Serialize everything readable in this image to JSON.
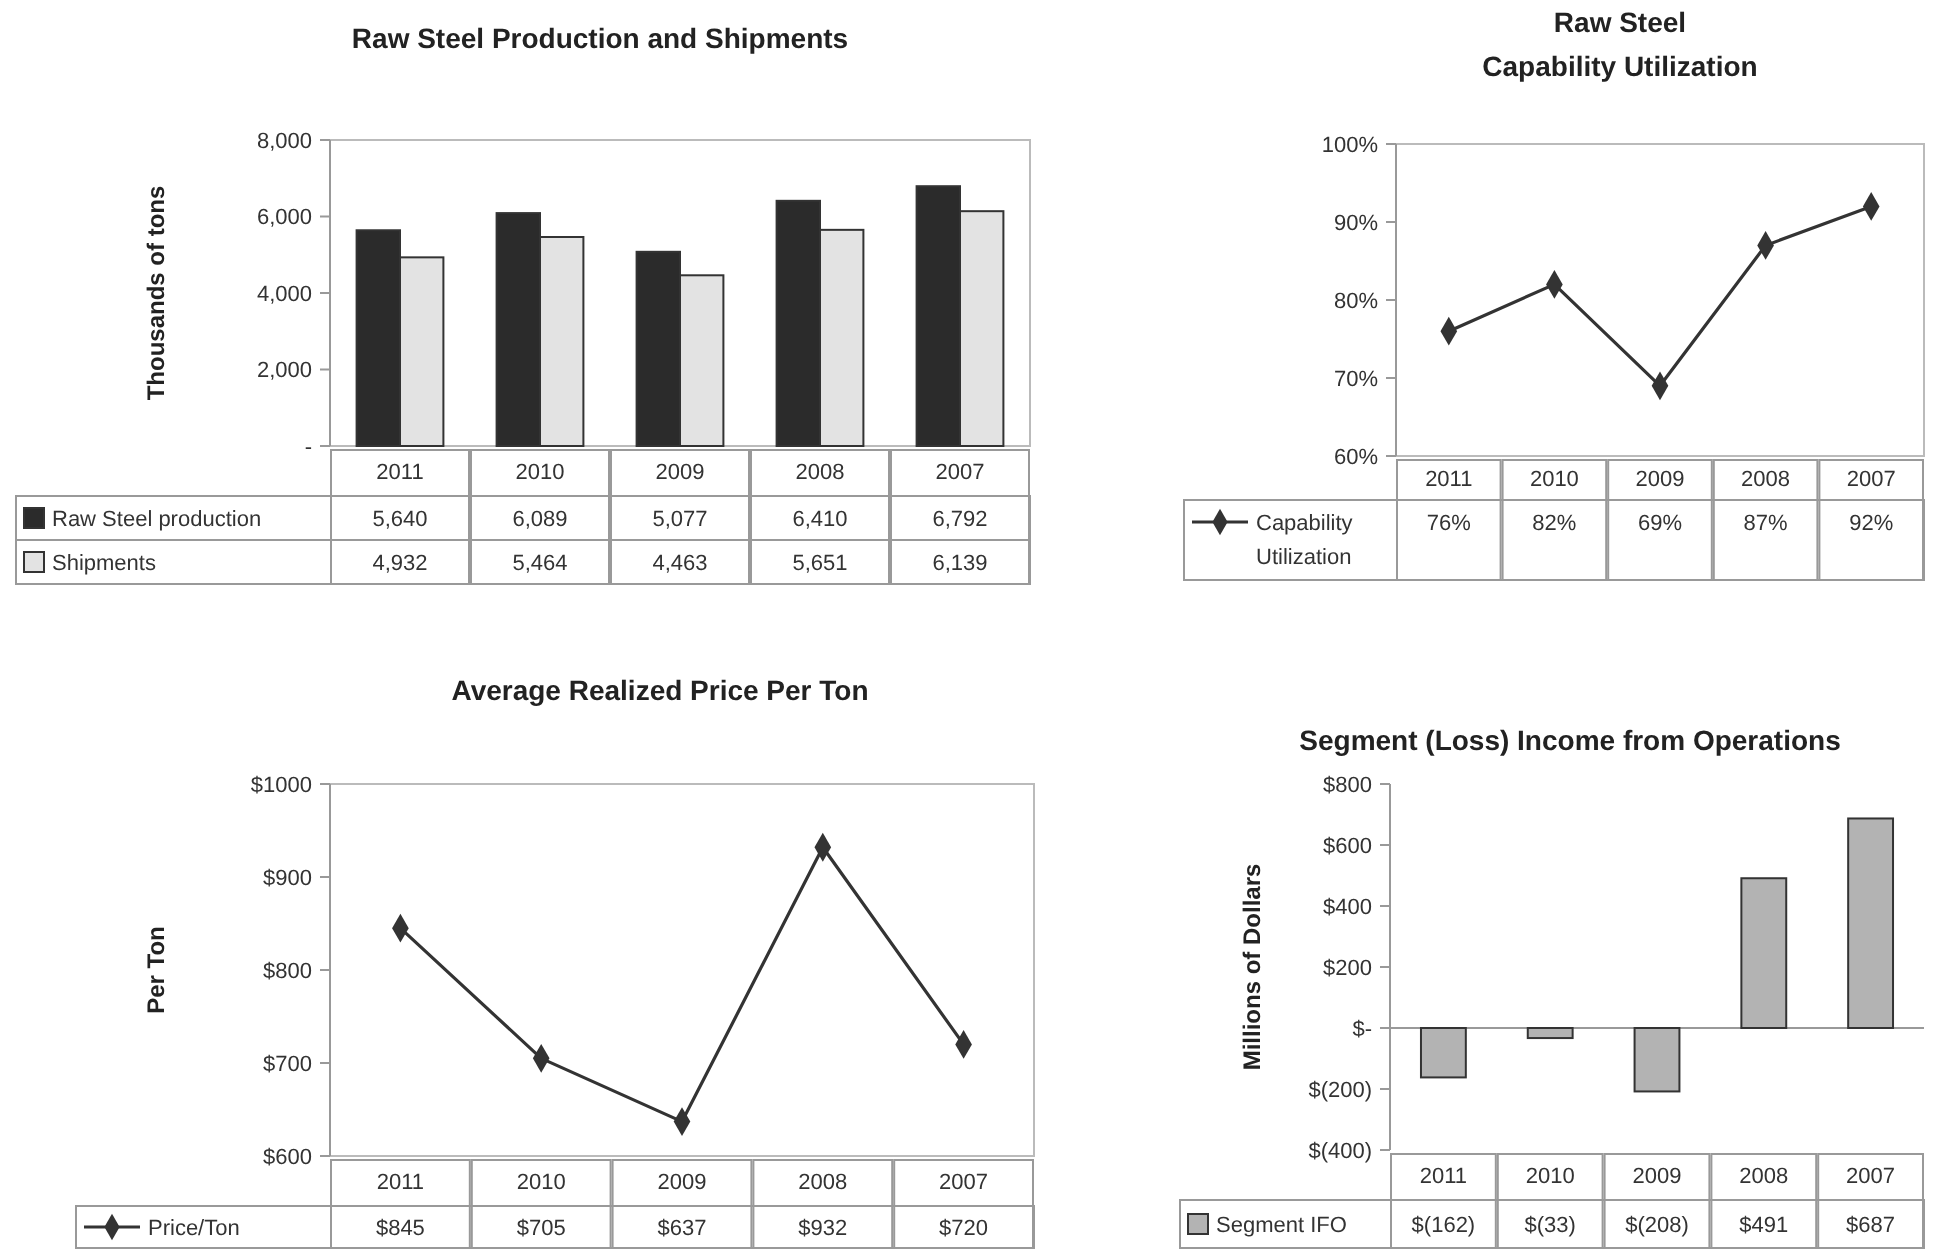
{
  "chart_data": [
    {
      "type": "bar",
      "title": "Raw Steel Production and Shipments",
      "ylabel": "Thousands of tons",
      "categories": [
        "2011",
        "2010",
        "2009",
        "2008",
        "2007"
      ],
      "series": [
        {
          "name": "Raw Steel production",
          "color": "#2b2b2b",
          "values": [
            5640,
            6089,
            5077,
            6410,
            6792
          ],
          "value_labels": [
            "5,640",
            "6,089",
            "5,077",
            "6,410",
            "6,792"
          ]
        },
        {
          "name": "Shipments",
          "color": "#e3e3e3",
          "values": [
            4932,
            5464,
            4463,
            5651,
            6139
          ],
          "value_labels": [
            "4,932",
            "5,464",
            "4,463",
            "5,651",
            "6,139"
          ]
        }
      ],
      "ylim": [
        0,
        8000
      ],
      "yticks": [
        {
          "value": 0,
          "label": "-"
        },
        {
          "value": 2000,
          "label": "2,000"
        },
        {
          "value": 4000,
          "label": "4,000"
        },
        {
          "value": 6000,
          "label": "6,000"
        },
        {
          "value": 8000,
          "label": "8,000"
        }
      ],
      "legend": "bottom left"
    },
    {
      "type": "line",
      "title": "Raw Steel\nCapability Utilization",
      "categories": [
        "2011",
        "2010",
        "2009",
        "2008",
        "2007"
      ],
      "series": [
        {
          "name": "Capability Utilization",
          "color": "#333333",
          "values": [
            76,
            82,
            69,
            87,
            92
          ],
          "value_labels": [
            "76%",
            "82%",
            "69%",
            "87%",
            "92%"
          ]
        }
      ],
      "ylim": [
        60,
        100
      ],
      "yticks": [
        {
          "value": 60,
          "label": "60%"
        },
        {
          "value": 70,
          "label": "70%"
        },
        {
          "value": 80,
          "label": "80%"
        },
        {
          "value": 90,
          "label": "90%"
        },
        {
          "value": 100,
          "label": "100%"
        }
      ],
      "marker": "diamond",
      "legend": "bottom left"
    },
    {
      "type": "line",
      "title": "Average Realized Price Per Ton",
      "ylabel": "Per Ton",
      "categories": [
        "2011",
        "2010",
        "2009",
        "2008",
        "2007"
      ],
      "series": [
        {
          "name": "Price/Ton",
          "color": "#333333",
          "values": [
            845,
            705,
            637,
            932,
            720
          ],
          "value_labels": [
            "$845",
            "$705",
            "$637",
            "$932",
            "$720"
          ]
        }
      ],
      "ylim": [
        600,
        1000
      ],
      "yticks": [
        {
          "value": 600,
          "label": "$600"
        },
        {
          "value": 700,
          "label": "$700"
        },
        {
          "value": 800,
          "label": "$800"
        },
        {
          "value": 900,
          "label": "$900"
        },
        {
          "value": 1000,
          "label": "$1000"
        }
      ],
      "marker": "diamond",
      "legend": "bottom left"
    },
    {
      "type": "bar",
      "title": "Segment (Loss) Income from Operations",
      "ylabel": "Millions of Dollars",
      "categories": [
        "2011",
        "2010",
        "2009",
        "2008",
        "2007"
      ],
      "series": [
        {
          "name": "Segment IFO",
          "color": "#b3b3b3",
          "values": [
            -162,
            -33,
            -208,
            491,
            687
          ],
          "value_labels": [
            "$(162)",
            "$(33)",
            "$(208)",
            "$491",
            "$687"
          ]
        }
      ],
      "ylim": [
        -400,
        800
      ],
      "yticks": [
        {
          "value": -400,
          "label": "$(400)"
        },
        {
          "value": -200,
          "label": "$(200)"
        },
        {
          "value": 0,
          "label": "$-"
        },
        {
          "value": 200,
          "label": "$200"
        },
        {
          "value": 400,
          "label": "$400"
        },
        {
          "value": 600,
          "label": "$600"
        },
        {
          "value": 800,
          "label": "$800"
        }
      ],
      "legend": "bottom left"
    }
  ]
}
